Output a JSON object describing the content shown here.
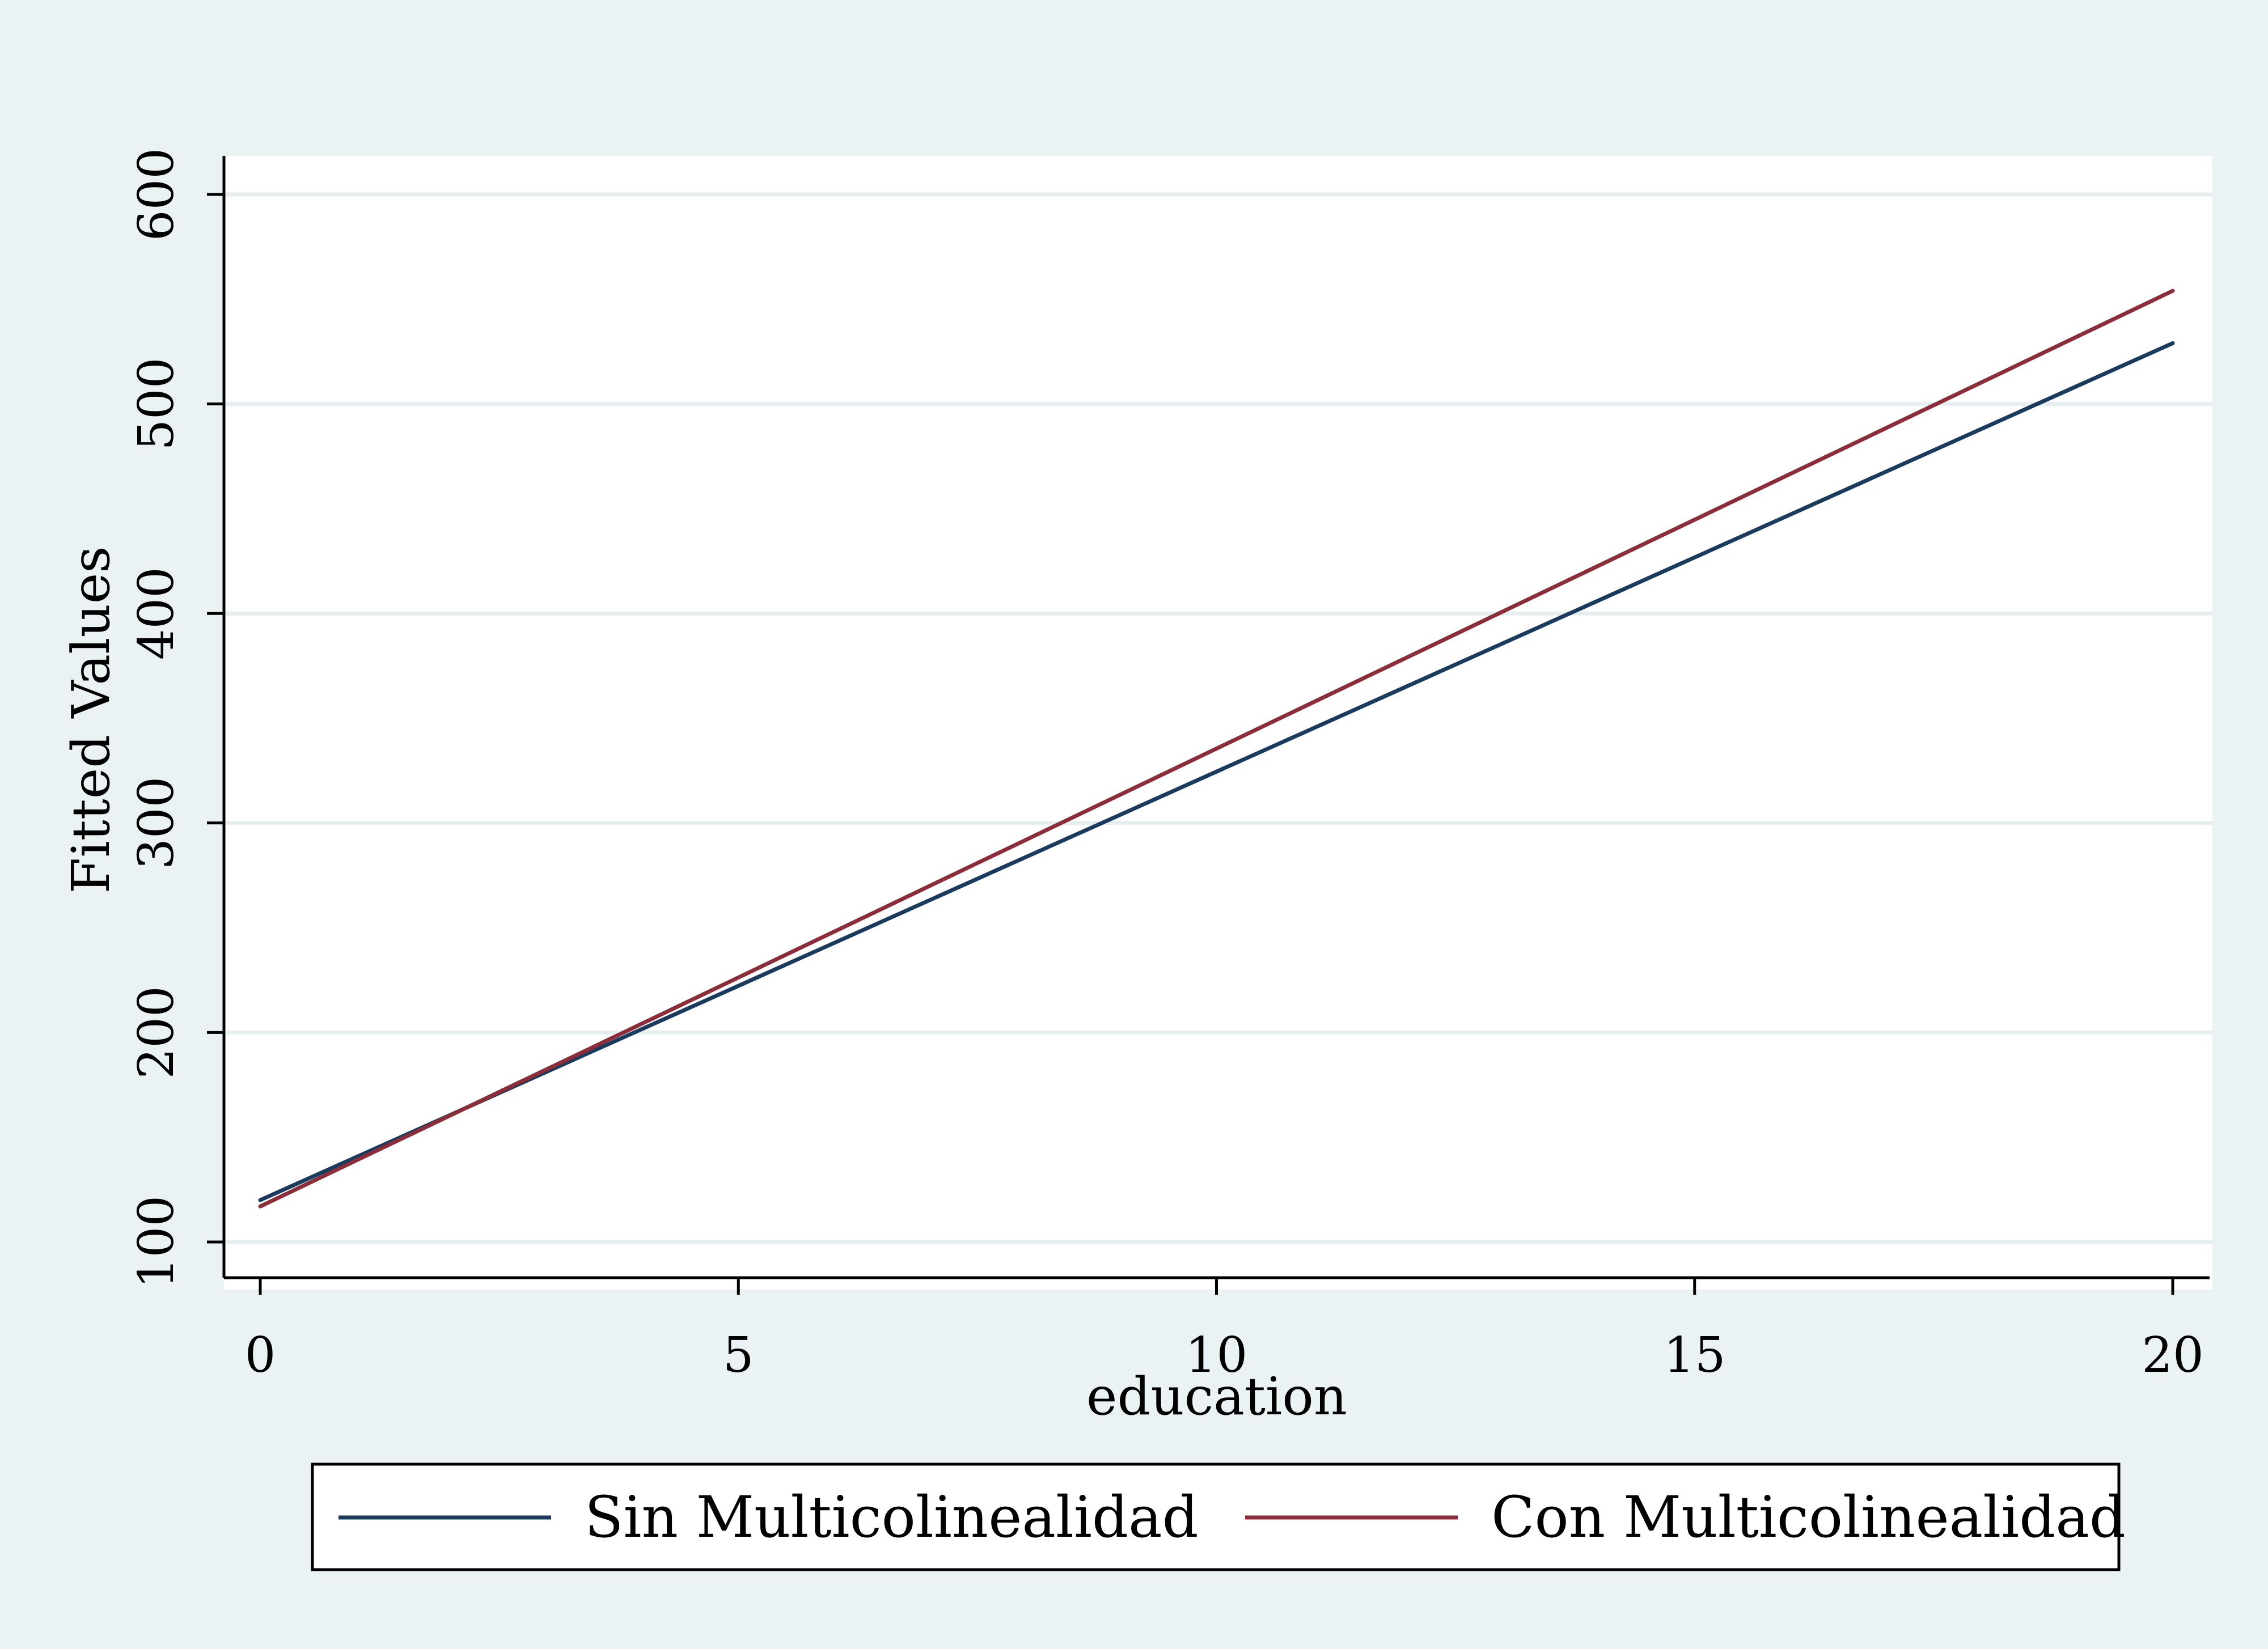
{
  "chart_data": {
    "type": "line",
    "title": "",
    "xlabel": "education",
    "ylabel": "Fitted Values",
    "xlim": [
      0,
      20
    ],
    "ylim": [
      100,
      600
    ],
    "xticks": [
      0,
      5,
      10,
      15,
      20
    ],
    "yticks": [
      100,
      200,
      300,
      400,
      500,
      600
    ],
    "xtick_labels": [
      "0",
      "5",
      "10",
      "15",
      "20"
    ],
    "ytick_labels": [
      "100",
      "200",
      "300",
      "400",
      "500",
      "600"
    ],
    "grid": true,
    "legend_position": "bottom",
    "x": [
      0,
      20
    ],
    "series": [
      {
        "name": "Sin Multicolinealidad",
        "color": "#1a3b5d",
        "values": [
          120,
          529
        ]
      },
      {
        "name": "Con Multicolinealidad",
        "color": "#8c2d3a",
        "values": [
          117,
          554
        ]
      }
    ]
  },
  "colors": {
    "page_background": "#eaf2f3",
    "plot_background": "#ffffff",
    "grid": "#e6eeef",
    "axis": "#000000"
  }
}
